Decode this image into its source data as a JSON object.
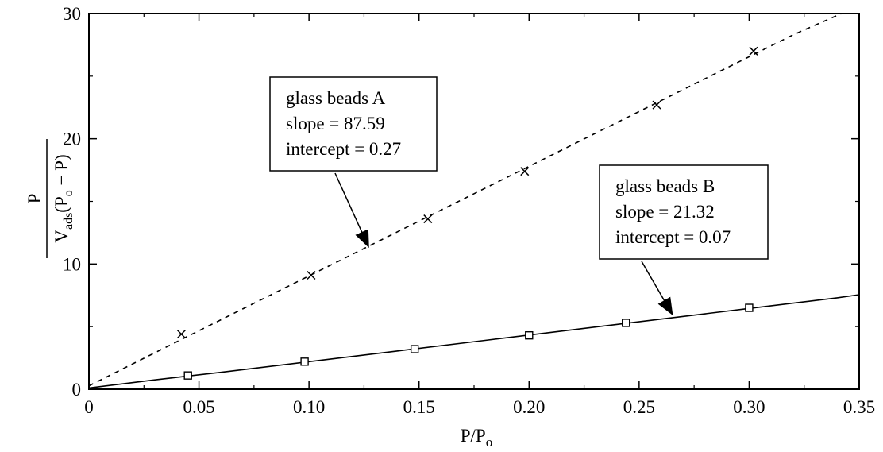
{
  "chart_data": {
    "type": "line",
    "xlabel": {
      "base": "P/P",
      "sub": "o"
    },
    "ylabel": {
      "numerator": "P",
      "denominator": {
        "v": "V",
        "v_sub": "ads",
        "open": "(P",
        "p_sub": "o",
        "rest": " − P)"
      }
    },
    "xlim": [
      0,
      0.35
    ],
    "ylim": [
      0,
      30
    ],
    "x_ticks": [
      0,
      0.05,
      0.1,
      0.15,
      0.2,
      0.25,
      0.3,
      0.35
    ],
    "x_tick_labels": [
      "0",
      "0.05",
      "0.10",
      "0.15",
      "0.20",
      "0.25",
      "0.30",
      "0.35"
    ],
    "y_ticks": [
      0,
      10,
      20,
      30
    ],
    "y_tick_labels": [
      "0",
      "10",
      "20",
      "30"
    ],
    "grid": false,
    "series": [
      {
        "name": "glass beads A",
        "line_style": "dashed",
        "marker": "x",
        "points": [
          [
            0.042,
            4.4
          ],
          [
            0.101,
            9.1
          ],
          [
            0.154,
            13.6
          ],
          [
            0.198,
            17.4
          ],
          [
            0.258,
            22.7
          ],
          [
            0.302,
            27.0
          ]
        ],
        "fit": [
          [
            0,
            0.27
          ],
          [
            0.04,
            3.8
          ],
          [
            0.08,
            7.3
          ],
          [
            0.12,
            10.8
          ],
          [
            0.16,
            14.3
          ],
          [
            0.2,
            17.8
          ],
          [
            0.24,
            21.3
          ],
          [
            0.28,
            24.8
          ],
          [
            0.32,
            28.3
          ],
          [
            0.342,
            30.0
          ]
        ]
      },
      {
        "name": "glass beads B",
        "line_style": "solid",
        "marker": "square",
        "points": [
          [
            0.045,
            1.1
          ],
          [
            0.098,
            2.2
          ],
          [
            0.148,
            3.2
          ],
          [
            0.2,
            4.3
          ],
          [
            0.244,
            5.3
          ],
          [
            0.3,
            6.5
          ]
        ],
        "fit": [
          [
            0,
            0.1
          ],
          [
            0.03,
            0.75
          ],
          [
            0.06,
            1.35
          ],
          [
            0.1,
            2.2
          ],
          [
            0.14,
            3.05
          ],
          [
            0.18,
            3.9
          ],
          [
            0.22,
            4.75
          ],
          [
            0.26,
            5.6
          ],
          [
            0.3,
            6.45
          ],
          [
            0.34,
            7.3
          ],
          [
            0.35,
            7.55
          ]
        ]
      }
    ],
    "annotations": [
      {
        "series": "glass beads A",
        "lines": [
          "glass beads A",
          "slope = 87.59",
          "intercept = 0.27"
        ],
        "arrow_to": [
          0.127,
          11.4
        ]
      },
      {
        "series": "glass beads B",
        "lines": [
          "glass beads B",
          "slope = 21.32",
          "intercept = 0.07"
        ],
        "arrow_to": [
          0.265,
          6.0
        ]
      }
    ]
  }
}
